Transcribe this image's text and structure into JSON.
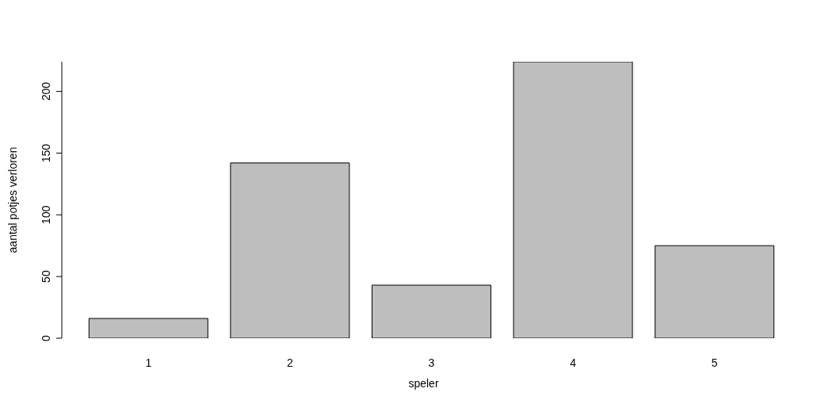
{
  "chart_data": {
    "type": "bar",
    "xlabel": "speler",
    "ylabel": "aantal potjes verloren",
    "categories": [
      "1",
      "2",
      "3",
      "4",
      "5"
    ],
    "values": [
      16,
      142,
      43,
      224,
      75
    ],
    "color": "#bebebe",
    "ylim": [
      0,
      224
    ],
    "yticks": [
      0,
      50,
      100,
      150,
      200
    ],
    "grid": false
  }
}
